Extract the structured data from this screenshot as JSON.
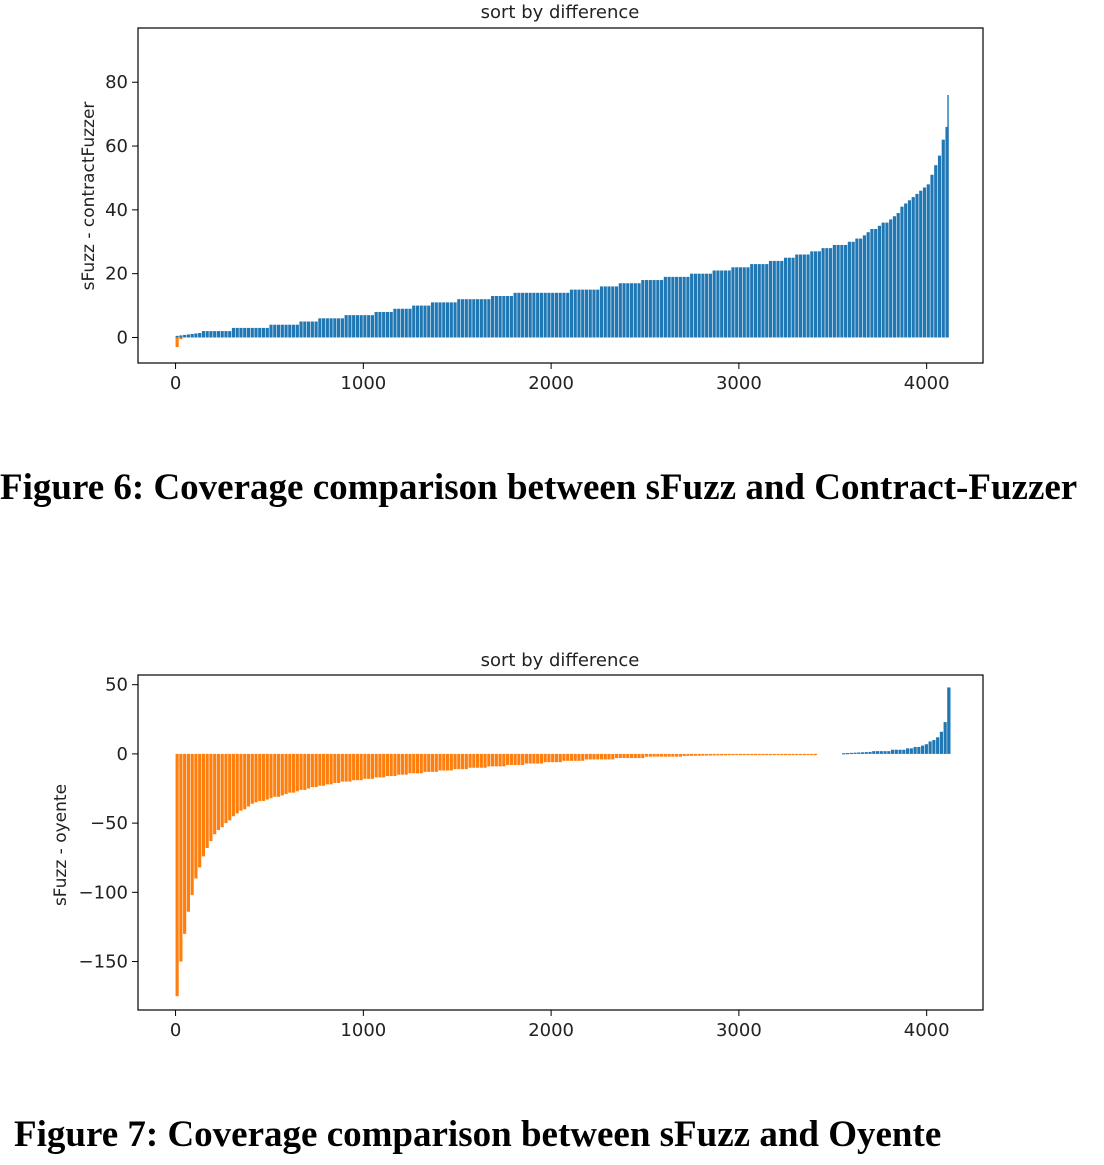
{
  "figures": [
    {
      "caption": "Figure 6: Coverage comparison between sFuzz and Contract-Fuzzer",
      "chart_data": {
        "type": "bar",
        "title": "sort by difference",
        "xlabel": "",
        "ylabel": "sFuzz - contractFuzzer",
        "xlim": [
          -200,
          4300
        ],
        "ylim": [
          -8,
          97
        ],
        "xticks": [
          0,
          1000,
          2000,
          3000,
          4000
        ],
        "yticks": [
          0,
          20,
          40,
          60,
          80
        ],
        "series": [
          {
            "color": "#ff7f0e",
            "x": [
              0,
              10,
              20,
              30
            ],
            "values": [
              -3,
              -1.5,
              -0.5,
              -0.2
            ]
          },
          {
            "color": "#1f77b4",
            "x": [
              0,
              200,
              400,
              600,
              800,
              1000,
              1200,
              1400,
              1600,
              1800,
              2000,
              2200,
              2400,
              2600,
              2800,
              3000,
              3200,
              3400,
              3600,
              3800,
              3900,
              4000,
              4050,
              4080,
              4100,
              4110
            ],
            "values": [
              0.5,
              2,
              3,
              4,
              6,
              7,
              9,
              11,
              12,
              13.5,
              14,
              15,
              17,
              18.5,
              20,
              22,
              24,
              27,
              30,
              37,
              43,
              48,
              55,
              62,
              66,
              76
            ]
          }
        ]
      }
    },
    {
      "caption": "Figure 7: Coverage comparison between sFuzz and Oyente",
      "chart_data": {
        "type": "bar",
        "title": "sort by difference",
        "xlabel": "",
        "ylabel": "sFuzz - oyente",
        "xlim": [
          -200,
          4300
        ],
        "ylim": [
          -185,
          57
        ],
        "xticks": [
          0,
          1000,
          2000,
          3000,
          4000
        ],
        "yticks": [
          50,
          0,
          -50,
          -100,
          -150
        ],
        "ytick_labels": [
          "50",
          "0",
          "−50",
          "−100",
          "−150"
        ],
        "series": [
          {
            "color": "#ff7f0e",
            "x": [
              0,
              20,
              50,
              100,
              150,
              200,
              300,
              400,
              500,
              700,
              900,
              1200,
              1500,
              1800,
              2100,
              2400,
              2700,
              3000,
              3200,
              3400
            ],
            "values": [
              -175,
              -150,
              -120,
              -90,
              -70,
              -58,
              -45,
              -36,
              -32,
              -25,
              -20,
              -15,
              -11,
              -8,
              -5,
              -3,
              -1.5,
              -0.8,
              -0.4,
              -0.1
            ]
          },
          {
            "color": "#1f77b4",
            "x": [
              3550,
              3700,
              3850,
              3950,
              4000,
              4050,
              4080,
              4100,
              4110
            ],
            "values": [
              0.5,
              1.5,
              3,
              5,
              8,
              12,
              18,
              28,
              48
            ]
          }
        ]
      }
    }
  ]
}
